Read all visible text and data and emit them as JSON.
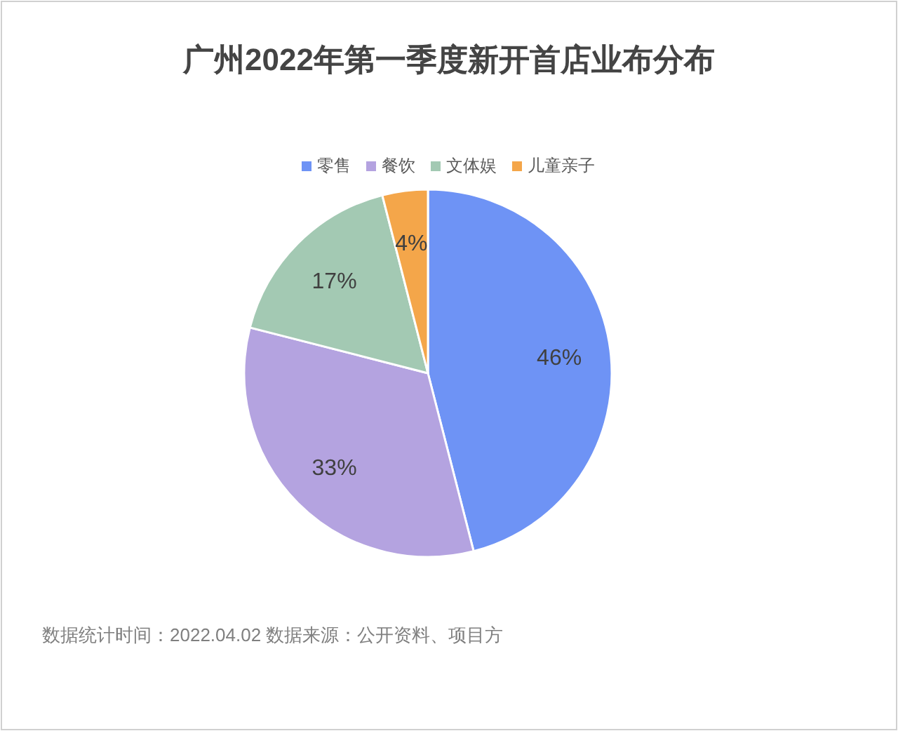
{
  "chart_data": {
    "type": "pie",
    "title": "广州2022年第一季度新开首店业布分布",
    "categories": [
      "零售",
      "餐饮",
      "文体娱",
      "儿童亲子"
    ],
    "values": [
      46,
      33,
      17,
      4
    ],
    "colors": [
      "#6e93f5",
      "#b4a3e0",
      "#a3c9b3",
      "#f4a64a"
    ],
    "value_labels": [
      "46%",
      "33%",
      "17%",
      "4%"
    ],
    "legend": "top",
    "annotations": [
      "数据统计时间：2022.04.02  数据来源：公开资料、项目方"
    ]
  }
}
